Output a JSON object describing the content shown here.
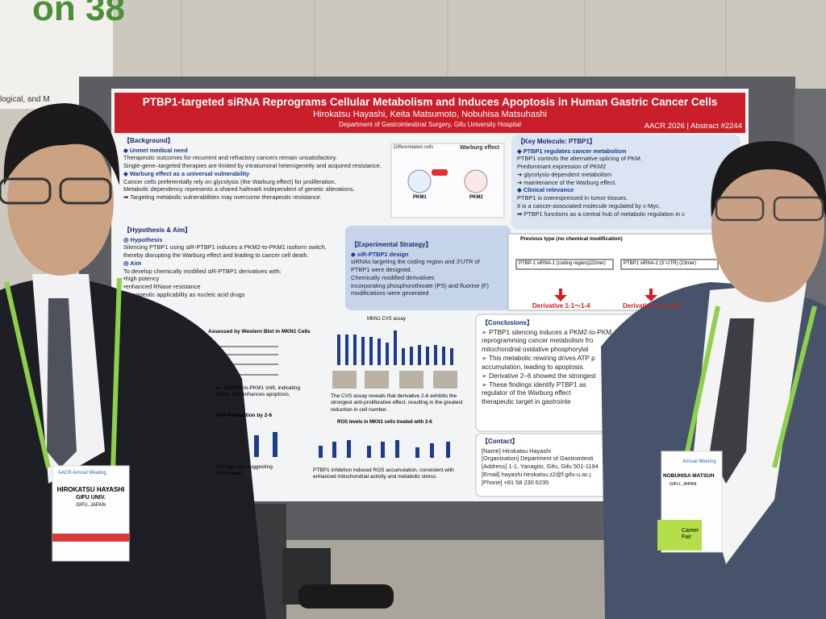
{
  "sign": {
    "text": "on 38",
    "sub": "logical, and M"
  },
  "poster": {
    "title": "PTBP1-targeted siRNA Reprograms Cellular Metabolism and Induces Apoptosis in Human Gastric Cancer Cells",
    "authors": "Hirokatsu Hayashi, Keita Matsumoto, Nobuhisa Matsuhashi",
    "affiliation": "Department of Gastrointestinal Surgery, Gifu University Hospital",
    "meeting": "AACR 2026 | Abstract #2244",
    "background": {
      "heading": "【Background】",
      "lines": [
        "◆ Unmet medical need",
        "Therapeutic outcomes for recurrent and refractory cancers remain unsatisfactory.",
        "Single-gene–targeted therapies are limited by intratumoral heterogeneity and acquired resistance.",
        "◆ Warburg effect as a universal vulnerability",
        "Cancer cells preferentially rely on glycolysis (the Warburg effect) for proliferation.",
        "Metabolic dependency represents a shared hallmark independent of genetic alterations.",
        "➡ Targeting metabolic vulnerabilities may overcome therapeutic resistance."
      ]
    },
    "warburg": {
      "left": "Differentiated cells",
      "right": "Warburg effect",
      "pkm1": "PKM1",
      "pkm2": "PKM2"
    },
    "key_molecule": {
      "heading": "【Key Molecule: PTBP1】",
      "lines": [
        "◆ PTBP1 regulates cancer metabolism",
        "PTBP1 controls the alternative splicing of PKM.",
        "Predominant expression of PKM2",
        "➔ glycolysis-dependent metabolism",
        "➔ maintenance of the Warburg effect.",
        "◆ Clinical relevance",
        "PTBP1 is overexpressed in tumor tissues.",
        "It is a cancer-associated molecule regulated by c-Myc.",
        "➡ PTBP1 functions as a central hub of metabolic regulation in c"
      ]
    },
    "hypothesis": {
      "heading": "【Hypothesis & Aim】",
      "lines": [
        "◎ Hypothesis",
        "Silencing PTBP1 using siR-PTBP1 induces a PKM2-to-PKM1 isoform switch,",
        "thereby disrupting the Warburg effect and leading to cancer cell death.",
        "◎ Aim",
        "To develop chemically modified siR-PTBP1 derivatives with:",
        "•high potency",
        "•enhanced RNase resistance",
        "•therapeutic applicability as nucleic acid drugs"
      ]
    },
    "strategy": {
      "heading": "【Experimental Strategy】",
      "lines": [
        "◆ siR-PTBP1 design",
        "siRNAs targeting the coding region and 3'UTR of",
        "PTBP1 were designed.",
        "Chemically modified derivatives",
        "incorporating phosphorothioate (PS) and fluorine (F)",
        "modifications were generated"
      ]
    },
    "diagram": {
      "caption": "Previous type (no chemical modification)",
      "left": "PTBP-1 siRNA-1 (coding region)(22mer)",
      "right": "PTBP1 siRNA-2 (3'-UTR) (23mer)",
      "deriv_left": "Derivative 1-1～1-4",
      "deriv_right": "Derivative 2-1～2-9"
    },
    "figures": {
      "western": "Assessed by Western Blot in MKN1 Cells",
      "western_caption": "es a PKM2-to-PKM1 shift, indicating effect, and enhances apoptosis.",
      "cvs": "MKN1 CVS assay",
      "cvs_caption": "The CVS assay reveals that derivative 2-6 exhibits the strongest anti-proliferative effect, resulting in the greatest reduction in cell number.",
      "atp": "ATP Production by 2-6",
      "atp_caption": "ATP per cell, suggesting phorylation.",
      "ros": "ROS levels in MKN1 cells treated with 2-6",
      "ros_caption": "PTBP1 inhibition induced ROS accumulation, consistent with enhanced mitochondrial activity and metabolic stress."
    },
    "conclusions": {
      "heading": "【Conclusions】",
      "lines": [
        "➢ PTBP1 silencing induces a PKM2-to-PKM",
        "   reprogramming cancer metabolism fro",
        "   mitochondrial oxidative phosphorylat",
        "➢ This metabolic rewiring drives ATP p",
        "   accumulation, leading to apoptosis.",
        "➢ Derivative 2–6 showed the strongest",
        "➢ These findings identify PTBP1 as",
        "   regulator of the Warburg effect",
        "   therapeutic target in gastrointe"
      ]
    },
    "contact": {
      "heading": "【Contact】",
      "lines": [
        "[Name] Hirokatsu Hayashi",
        "[Organization] Department of Gastrointesti",
        "[Address] 1-1, Yanagito, Gifu, Gifu 501-1194",
        "[Email] hayashi.hirokatsu.z2@f.gifu-u.ac.j",
        "[Phone] +81 58 230 6235"
      ]
    }
  },
  "badges": [
    {
      "meeting": "AACR Annual Meeting",
      "name": "HIROKATSU HAYASHI",
      "org": "GIFU UNIV.",
      "place": "GIFU, JAPAN"
    },
    {
      "meeting": "Annual Meeting",
      "name": "NOBUHISA MATSUH",
      "place": "GIFU, JAPAN",
      "tag": "Career Fair"
    }
  ]
}
